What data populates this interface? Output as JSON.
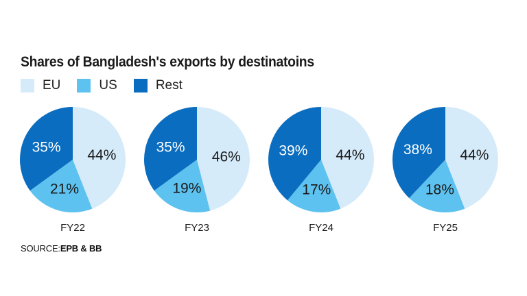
{
  "title": "Shares of Bangladesh's exports by destinatoins",
  "legend": [
    {
      "label": "EU",
      "color": "#d6ebfa"
    },
    {
      "label": "US",
      "color": "#5dc2ef"
    },
    {
      "label": "Rest",
      "color": "#0b6dbf"
    }
  ],
  "source": {
    "prefix": "SOURCE:",
    "name": "EPB & BB"
  },
  "chart_data": {
    "type": "pie",
    "categories": [
      "EU",
      "US",
      "Rest"
    ],
    "colors": [
      "#d6ebfa",
      "#5dc2ef",
      "#0b6dbf"
    ],
    "pies": [
      {
        "label": "FY22",
        "values": [
          44,
          21,
          35
        ],
        "value_labels": [
          "44%",
          "21%",
          "35%"
        ]
      },
      {
        "label": "FY23",
        "values": [
          46,
          19,
          35
        ],
        "value_labels": [
          "46%",
          "19%",
          "35%"
        ]
      },
      {
        "label": "FY24",
        "values": [
          44,
          17,
          39
        ],
        "value_labels": [
          "44%",
          "17%",
          "39%"
        ]
      },
      {
        "label": "FY25",
        "values": [
          44,
          18,
          38
        ],
        "value_labels": [
          "44%",
          "18%",
          "38%"
        ]
      }
    ]
  }
}
